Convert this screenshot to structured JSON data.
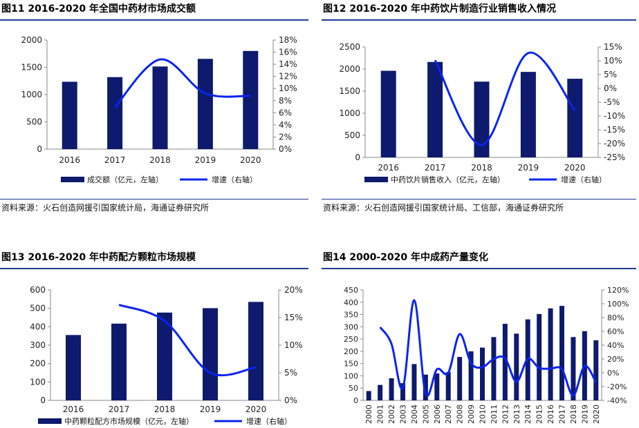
{
  "colors": {
    "bar": "#0d1a6e",
    "line": "#0a24f0",
    "rule": "#1f3a93",
    "axis": "#888888"
  },
  "panels": [
    {
      "title": "图11 2016-2020 年全国中药材市场成交额",
      "source": "资料来源：火石创造网援引国家统计局，海通证券研究所",
      "chart_data": {
        "type": "bar+line",
        "categories": [
          "2016",
          "2017",
          "2018",
          "2019",
          "2020"
        ],
        "series": [
          {
            "name": "成交额（亿元，左轴）",
            "type": "bar",
            "axis": "left",
            "values": [
              1235,
              1320,
              1515,
              1655,
              1800
            ]
          },
          {
            "name": "增速（右轴）",
            "type": "line",
            "axis": "right",
            "values": [
              null,
              6.9,
              14.8,
              9.2,
              8.8
            ]
          }
        ],
        "ylim": [
          0,
          2000
        ],
        "ytick_step": 500,
        "y2lim": [
          0,
          18
        ],
        "y2tick_step": 2,
        "y2_suffix": "%",
        "legend_position": "bottom"
      }
    },
    {
      "title": "图12 2016-2020 年中药饮片制造行业销售收入情况",
      "source": "资料来源：火石创造网援引国家统计局、工信部，海通证券研究所",
      "chart_data": {
        "type": "bar+line",
        "categories": [
          "2016",
          "2017",
          "2018",
          "2019",
          "2020"
        ],
        "series": [
          {
            "name": "中药饮片销售收入（亿元，左轴）",
            "type": "bar",
            "axis": "left",
            "values": [
              1960,
              2160,
              1715,
              1935,
              1780
            ]
          },
          {
            "name": "增速（右轴）",
            "type": "line",
            "axis": "right",
            "values": [
              null,
              10.2,
              -20.5,
              12.8,
              -8.0
            ]
          }
        ],
        "ylim": [
          0,
          2500
        ],
        "ytick_step": 500,
        "y2lim": [
          -25,
          15
        ],
        "y2tick_step": 5,
        "y2_suffix": "%",
        "legend_position": "bottom"
      }
    },
    {
      "title": "图13 2016-2020 年中药配方颗粒市场规模",
      "source": "",
      "chart_data": {
        "type": "bar+line",
        "categories": [
          "2016",
          "2017",
          "2018",
          "2019",
          "2020"
        ],
        "series": [
          {
            "name": "中药颗粒配方市场规模（亿元，左轴）",
            "type": "bar",
            "axis": "left",
            "values": [
              355,
              417,
              477,
              501,
              535
            ]
          },
          {
            "name": "增速（右轴）",
            "type": "line",
            "axis": "right",
            "values": [
              null,
              17.3,
              14.4,
              5.0,
              6.0
            ]
          }
        ],
        "ylim": [
          0,
          600
        ],
        "ytick_step": 100,
        "y2lim": [
          0,
          20
        ],
        "y2tick_step": 5,
        "y2_suffix": "%",
        "legend_position": "bottom"
      }
    },
    {
      "title": "图14 2000-2020 年中成药产量变化",
      "source": "",
      "chart_data": {
        "type": "bar+line",
        "categories": [
          "2000",
          "2001",
          "2002",
          "2003",
          "2004",
          "2005",
          "2006",
          "2007",
          "2008",
          "2009",
          "2010",
          "2011",
          "2012",
          "2013",
          "2014",
          "2015",
          "2016",
          "2017",
          "2018",
          "2019",
          "2020"
        ],
        "series": [
          {
            "name": "中成药产量（万吨，左轴）",
            "type": "bar",
            "axis": "left",
            "values": [
              38,
              63,
              90,
              70,
              148,
              105,
              110,
              115,
              177,
              200,
              215,
              258,
              312,
              272,
              330,
              352,
              375,
              385,
              258,
              282,
              245
            ]
          },
          {
            "name": "增速（右轴）",
            "type": "line",
            "axis": "right",
            "values": [
              null,
              66,
              42,
              -22,
              105,
              -30,
              5,
              0,
              56,
              14,
              8,
              20,
              21,
              -13,
              20,
              7,
              6,
              5,
              -33,
              10,
              -14
            ]
          }
        ],
        "ylim": [
          0,
          450
        ],
        "ytick_step": 50,
        "y2lim": [
          -40,
          120
        ],
        "y2tick_step": 20,
        "y2_suffix": "%",
        "legend_position": "bottom"
      }
    }
  ]
}
